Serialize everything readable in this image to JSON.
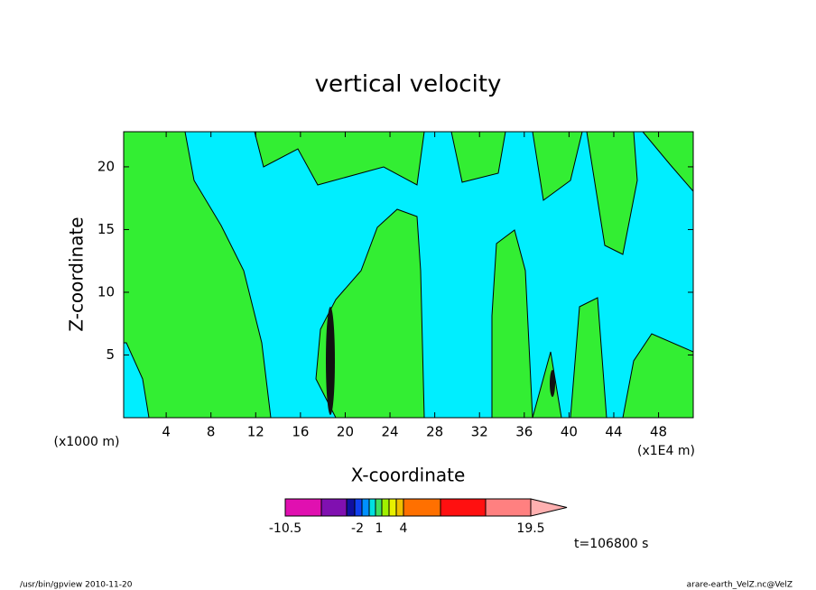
{
  "chart_data": {
    "type": "contour",
    "title": "vertical velocity",
    "x_label": "X-coordinate",
    "y_label": "Z-coordinate",
    "x_unit_left": "(x1000 m)",
    "x_unit_right": "(x1E4 m)",
    "xlim": [
      0.2,
      51.1
    ],
    "xticks": [
      4,
      8,
      12,
      16,
      20,
      24,
      28,
      32,
      36,
      40,
      44,
      48
    ],
    "ylim": [
      0,
      22.8
    ],
    "yticks": [
      5,
      10,
      15,
      20
    ],
    "colorbar": {
      "colors": [
        "#e010b0",
        "#8010b0",
        "#1010a0",
        "#1040f0",
        "#0090ff",
        "#00e0e0",
        "#40e060",
        "#a0f000",
        "#e8f000",
        "#f0c000",
        "#ff7000",
        "#ff1010",
        "#ff8080",
        "#ffb0b0"
      ],
      "ticks": [
        -10.5,
        -2,
        1,
        4,
        19.5
      ]
    },
    "time_label": "t=106800 s",
    "footer_left": "/usr/bin/gpview   2010-11-20",
    "footer_right": "arare-earth_VelZ.nc@VelZ"
  }
}
